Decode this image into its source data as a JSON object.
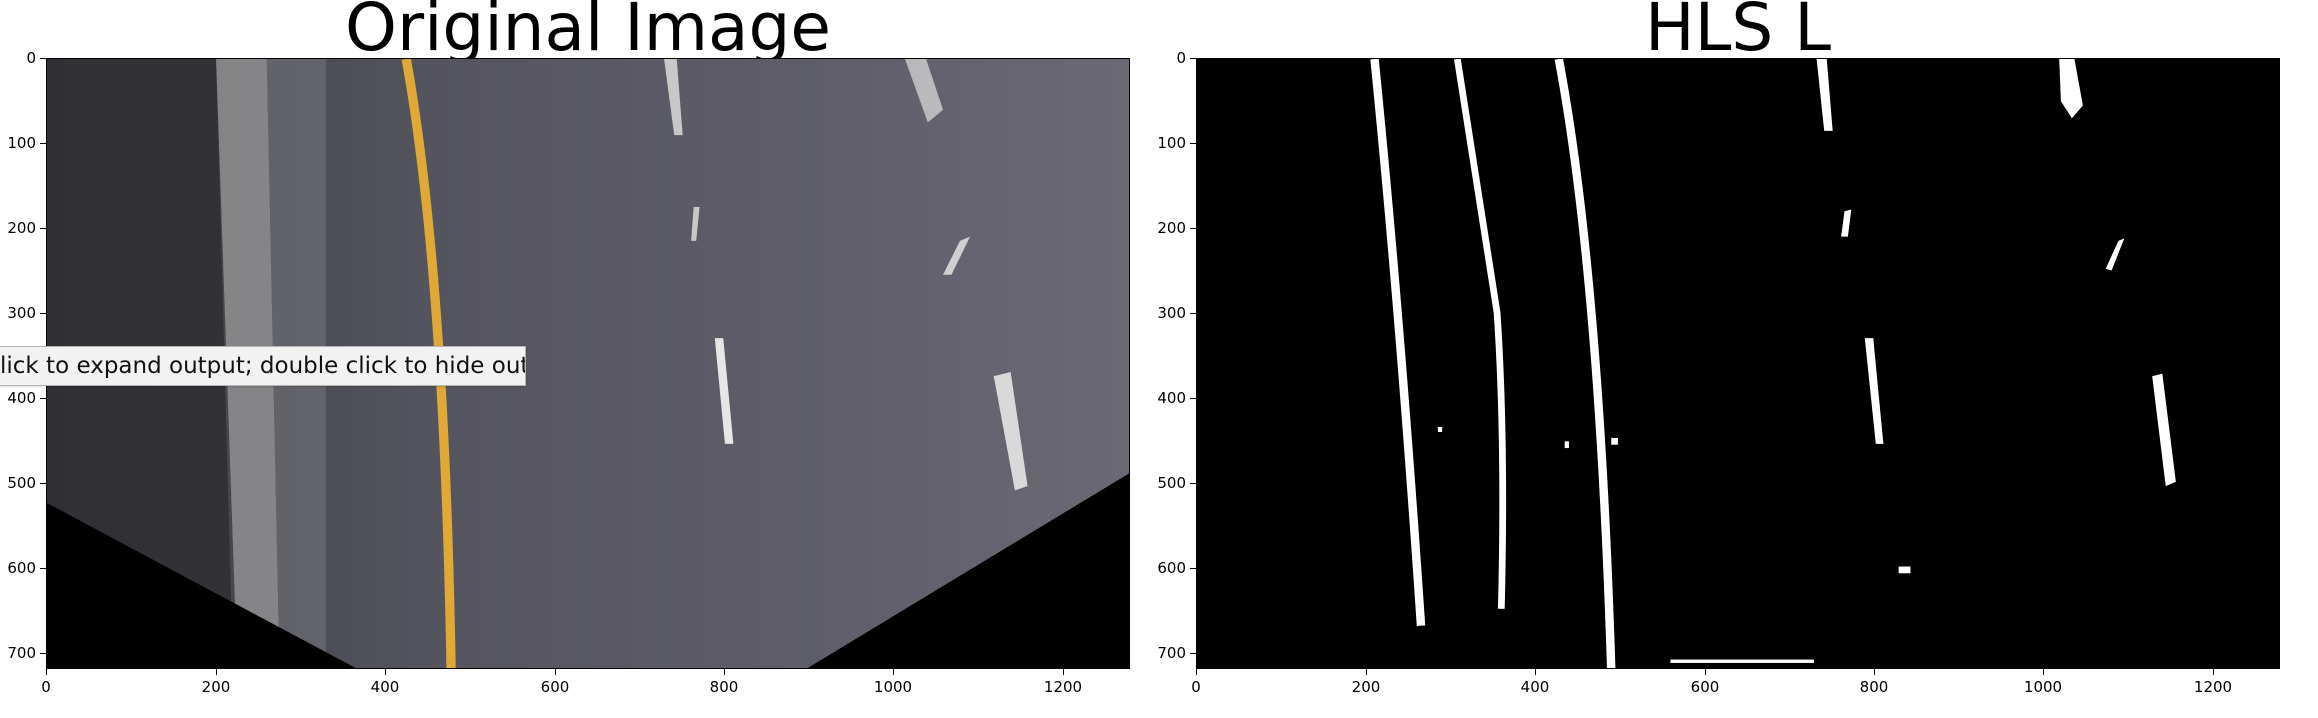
{
  "panels": [
    {
      "title": "Original Image",
      "yticks": [
        "0",
        "100",
        "200",
        "300",
        "400",
        "500",
        "600",
        "700"
      ],
      "xticks": [
        "0",
        "200",
        "400",
        "600",
        "800",
        "1000",
        "1200"
      ]
    },
    {
      "title": "HLS L",
      "yticks": [
        "0",
        "100",
        "200",
        "300",
        "400",
        "500",
        "600",
        "700"
      ],
      "xticks": [
        "0",
        "200",
        "400",
        "600",
        "800",
        "1000",
        "1200"
      ]
    }
  ],
  "tooltip": {
    "text": "lick to expand output; double click to hide output"
  }
}
